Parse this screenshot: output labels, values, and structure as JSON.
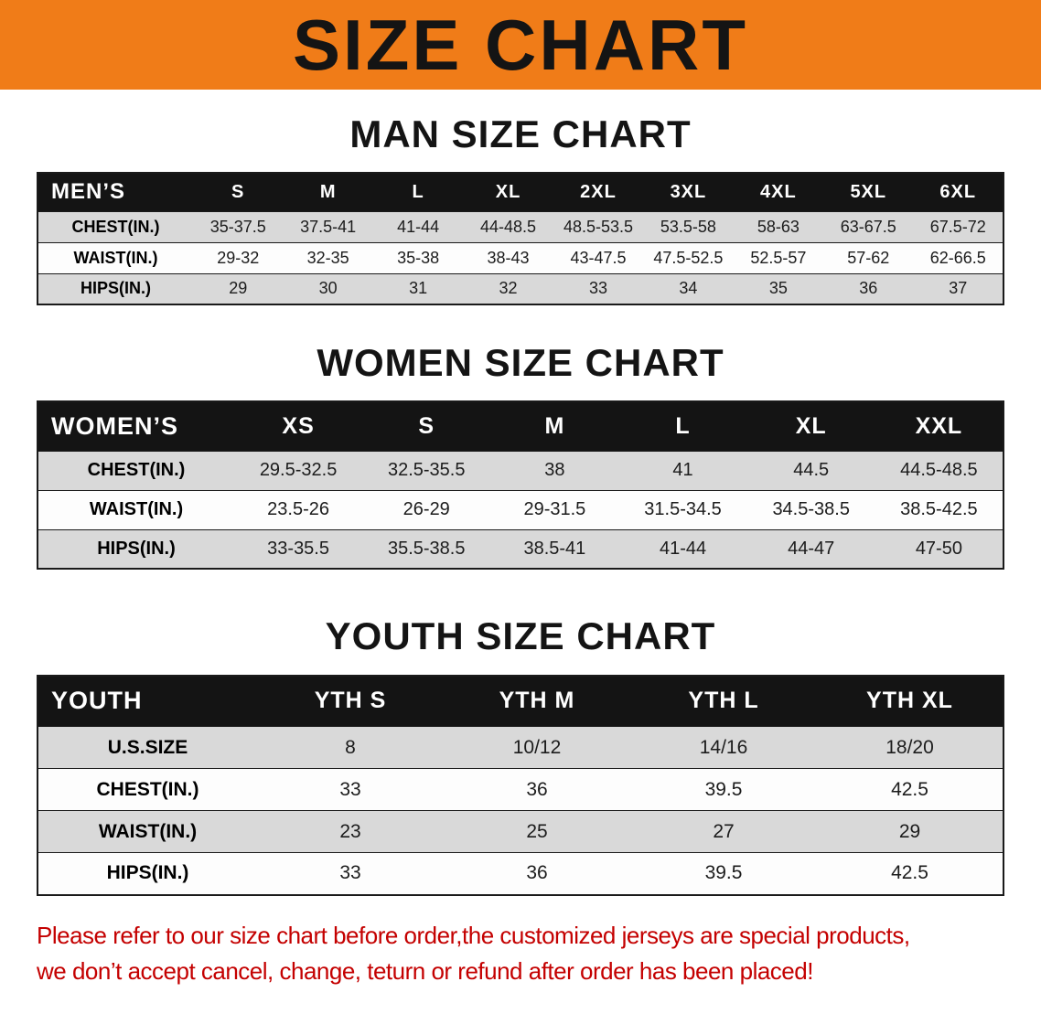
{
  "banner": {
    "title": "SIZE CHART"
  },
  "tables": {
    "men": {
      "heading": "MAN SIZE CHART",
      "header": [
        "MEN’S",
        "S",
        "M",
        "L",
        "XL",
        "2XL",
        "3XL",
        "4XL",
        "5XL",
        "6XL"
      ],
      "rows": [
        {
          "label": "CHEST(IN.)",
          "values": [
            "35-37.5",
            "37.5-41",
            "41-44",
            "44-48.5",
            "48.5-53.5",
            "53.5-58",
            "58-63",
            "63-67.5",
            "67.5-72"
          ]
        },
        {
          "label": "WAIST(IN.)",
          "values": [
            "29-32",
            "32-35",
            "35-38",
            "38-43",
            "43-47.5",
            "47.5-52.5",
            "52.5-57",
            "57-62",
            "62-66.5"
          ]
        },
        {
          "label": "HIPS(IN.)",
          "values": [
            "29",
            "30",
            "31",
            "32",
            "33",
            "34",
            "35",
            "36",
            "37"
          ]
        }
      ]
    },
    "women": {
      "heading": "WOMEN SIZE CHART",
      "header": [
        "WOMEN’S",
        "XS",
        "S",
        "M",
        "L",
        "XL",
        "XXL"
      ],
      "rows": [
        {
          "label": "CHEST(IN.)",
          "values": [
            "29.5-32.5",
            "32.5-35.5",
            "38",
            "41",
            "44.5",
            "44.5-48.5"
          ]
        },
        {
          "label": "WAIST(IN.)",
          "values": [
            "23.5-26",
            "26-29",
            "29-31.5",
            "31.5-34.5",
            "34.5-38.5",
            "38.5-42.5"
          ]
        },
        {
          "label": "HIPS(IN.)",
          "values": [
            "33-35.5",
            "35.5-38.5",
            "38.5-41",
            "41-44",
            "44-47",
            "47-50"
          ]
        }
      ]
    },
    "youth": {
      "heading": "YOUTH SIZE CHART",
      "header": [
        "YOUTH",
        "YTH S",
        "YTH M",
        "YTH L",
        "YTH XL"
      ],
      "rows": [
        {
          "label": "U.S.SIZE",
          "values": [
            "8",
            "10/12",
            "14/16",
            "18/20"
          ]
        },
        {
          "label": "CHEST(IN.)",
          "values": [
            "33",
            "36",
            "39.5",
            "42.5"
          ]
        },
        {
          "label": "WAIST(IN.)",
          "values": [
            "23",
            "25",
            "27",
            "29"
          ]
        },
        {
          "label": "HIPS(IN.)",
          "values": [
            "33",
            "36",
            "39.5",
            "42.5"
          ]
        }
      ]
    }
  },
  "disclaimer": {
    "line1": "Please refer to our size chart before order,the customized jerseys are special products,",
    "line2": "we don’t accept cancel, change, teturn or refund after order has been placed!"
  },
  "colors": {
    "banner_orange": "#f07c18",
    "header_black": "#141414",
    "row_gray": "#d9d9d9",
    "disclaimer_red": "#c40000"
  }
}
